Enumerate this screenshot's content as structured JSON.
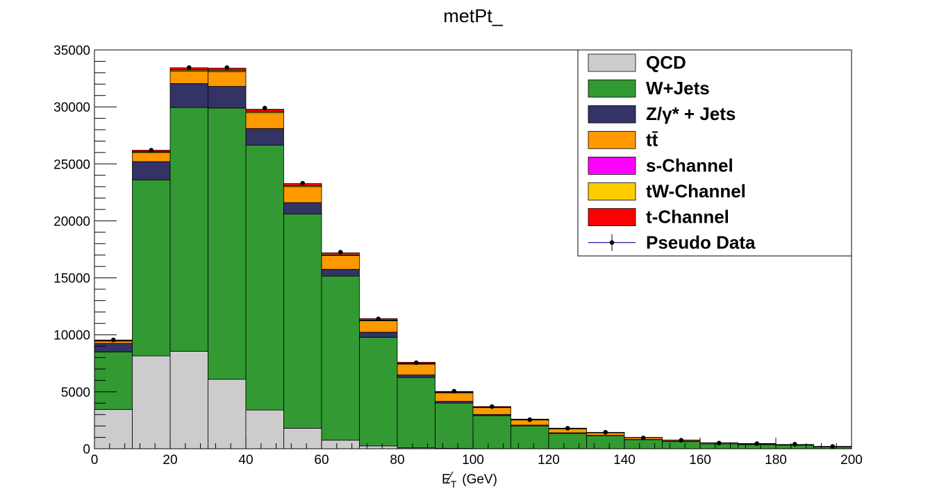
{
  "chart_data": {
    "type": "bar",
    "title": "metPt_",
    "xlabel_main": "E",
    "xlabel_sub": "T",
    "xlabel_unit": "(GeV)",
    "bin_edges": [
      0,
      10,
      20,
      30,
      40,
      50,
      60,
      70,
      80,
      90,
      100,
      110,
      120,
      130,
      140,
      150,
      160,
      170,
      180,
      190,
      200
    ],
    "xlim": [
      0,
      200
    ],
    "ylim": [
      0,
      35000
    ],
    "x_ticks": [
      0,
      20,
      40,
      60,
      80,
      100,
      120,
      140,
      160,
      180,
      200
    ],
    "y_ticks": [
      0,
      5000,
      10000,
      15000,
      20000,
      25000,
      30000,
      35000
    ],
    "series": [
      {
        "name": "QCD",
        "color": "#cccccc",
        "values": [
          3450,
          8150,
          8550,
          6100,
          3400,
          1800,
          750,
          250,
          80,
          30,
          10,
          5,
          0,
          0,
          0,
          0,
          0,
          0,
          0,
          0
        ]
      },
      {
        "name": "W+Jets",
        "color": "#339933",
        "values": [
          5050,
          15450,
          21400,
          23800,
          23250,
          18800,
          14400,
          9530,
          6180,
          3980,
          2890,
          2000,
          1350,
          1150,
          800,
          630,
          420,
          370,
          320,
          170
        ]
      },
      {
        "name": "Z/γ* + Jets",
        "color": "#333366",
        "values": [
          750,
          1600,
          2100,
          1900,
          1450,
          1000,
          600,
          450,
          220,
          150,
          110,
          70,
          50,
          30,
          20,
          15,
          10,
          10,
          5,
          5
        ]
      },
      {
        "name": "tt̄",
        "color": "#ff9900",
        "values": [
          200,
          800,
          1100,
          1300,
          1400,
          1400,
          1200,
          1000,
          950,
          750,
          600,
          450,
          350,
          220,
          150,
          100,
          80,
          60,
          40,
          20
        ]
      },
      {
        "name": "s-Channel",
        "color": "#ff00ff",
        "values": [
          5,
          10,
          15,
          15,
          15,
          15,
          10,
          10,
          10,
          5,
          5,
          5,
          5,
          2,
          2,
          2,
          1,
          1,
          1,
          1
        ]
      },
      {
        "name": "tW-Channel",
        "color": "#ffcc00",
        "values": [
          30,
          60,
          90,
          100,
          100,
          90,
          80,
          60,
          50,
          40,
          30,
          20,
          15,
          10,
          8,
          6,
          5,
          4,
          3,
          2
        ]
      },
      {
        "name": "t-Channel",
        "color": "#ff0000",
        "values": [
          60,
          130,
          180,
          190,
          180,
          170,
          150,
          120,
          100,
          80,
          60,
          50,
          40,
          30,
          20,
          15,
          12,
          10,
          8,
          6
        ]
      }
    ],
    "pseudo_data": {
      "name": "Pseudo Data",
      "color": "#000099",
      "x": [
        5,
        15,
        25,
        35,
        45,
        55,
        65,
        75,
        85,
        95,
        105,
        115,
        125,
        135,
        145,
        155,
        165,
        175,
        185,
        195
      ],
      "y": [
        9550,
        26200,
        33450,
        33450,
        29900,
        23300,
        17250,
        11400,
        7550,
        5050,
        3700,
        2550,
        1800,
        1450,
        950,
        750,
        500,
        450,
        400,
        200
      ]
    },
    "legend": {
      "position": "top-right",
      "entries": [
        "QCD",
        "W+Jets",
        "Z/γ* + Jets",
        "tt̄",
        "s-Channel",
        "tW-Channel",
        "t-Channel",
        "Pseudo Data"
      ]
    }
  }
}
